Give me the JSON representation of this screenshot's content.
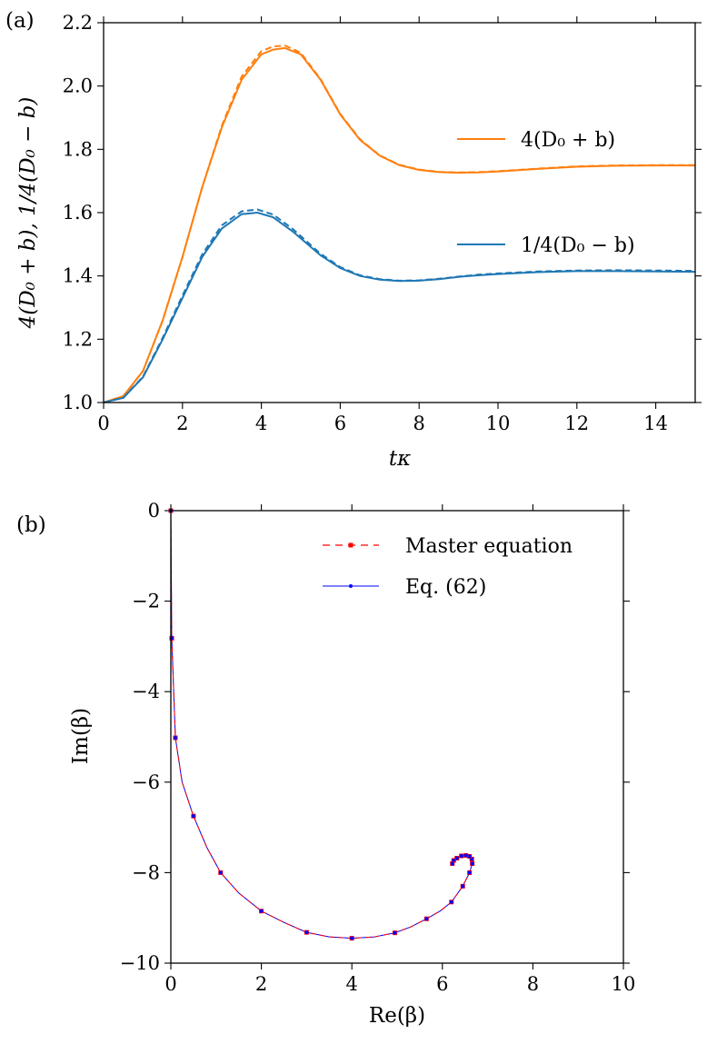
{
  "chart_data": [
    {
      "panel_label": "(a)",
      "type": "line",
      "xlabel": "tκ",
      "ylabel": "4(D₀ + b),  1/4(D₀ − b)",
      "xlim": [
        0,
        15
      ],
      "ylim": [
        1.0,
        2.2
      ],
      "xticks": [
        0,
        2,
        4,
        6,
        8,
        10,
        12,
        14
      ],
      "xtick_labels": [
        "0",
        "2",
        "4",
        "6",
        "8",
        "10",
        "12",
        "14"
      ],
      "yticks": [
        1.0,
        1.2,
        1.4,
        1.6,
        1.8,
        2.0,
        2.2
      ],
      "ytick_labels": [
        "1.0",
        "1.2",
        "1.4",
        "1.6",
        "1.8",
        "2.0",
        "2.2"
      ],
      "legend_position": "right",
      "series": [
        {
          "name": "4(D₀ + b)",
          "color": "#ff7f0e",
          "style": "solid",
          "x": [
            0,
            0.5,
            1,
            1.5,
            2,
            2.5,
            3,
            3.5,
            4,
            4.3,
            4.6,
            5,
            5.5,
            6,
            6.5,
            7,
            7.5,
            8,
            8.5,
            9,
            9.5,
            10,
            11,
            12,
            13,
            14,
            15
          ],
          "y": [
            1.0,
            1.02,
            1.1,
            1.26,
            1.46,
            1.68,
            1.87,
            2.02,
            2.1,
            2.115,
            2.12,
            2.1,
            2.02,
            1.91,
            1.83,
            1.78,
            1.75,
            1.735,
            1.728,
            1.726,
            1.727,
            1.73,
            1.738,
            1.745,
            1.748,
            1.749,
            1.749
          ]
        },
        {
          "name": "4(D₀ + b) dashed",
          "color": "#ff7f0e",
          "style": "dashed",
          "x": [
            0,
            0.5,
            1,
            1.5,
            2,
            2.5,
            3,
            3.5,
            4,
            4.3,
            4.6,
            5,
            5.5,
            6,
            6.5,
            7,
            7.5,
            8,
            8.5,
            9,
            9.5,
            10,
            11,
            12,
            13,
            14,
            15
          ],
          "y": [
            1.0,
            1.02,
            1.1,
            1.26,
            1.46,
            1.68,
            1.875,
            2.03,
            2.11,
            2.125,
            2.128,
            2.105,
            2.022,
            1.912,
            1.832,
            1.781,
            1.751,
            1.736,
            1.729,
            1.727,
            1.728,
            1.731,
            1.739,
            1.746,
            1.749,
            1.75,
            1.75
          ]
        },
        {
          "name": "1/4(D₀ − b)",
          "color": "#1f77b4",
          "style": "solid",
          "x": [
            0,
            0.5,
            1,
            1.5,
            2,
            2.5,
            3,
            3.5,
            3.9,
            4.3,
            4.8,
            5.5,
            6,
            6.5,
            7,
            7.5,
            8,
            8.5,
            9,
            9.5,
            10,
            11,
            12,
            13,
            14,
            15
          ],
          "y": [
            1.0,
            1.015,
            1.08,
            1.2,
            1.33,
            1.46,
            1.55,
            1.595,
            1.6,
            1.585,
            1.54,
            1.465,
            1.425,
            1.4,
            1.388,
            1.384,
            1.385,
            1.39,
            1.397,
            1.402,
            1.406,
            1.412,
            1.415,
            1.415,
            1.414,
            1.413
          ]
        },
        {
          "name": "1/4(D₀ − b) dashed",
          "color": "#1f77b4",
          "style": "dashed",
          "x": [
            0,
            0.5,
            1,
            1.5,
            2,
            2.5,
            3,
            3.5,
            3.9,
            4.3,
            4.8,
            5.5,
            6,
            6.5,
            7,
            7.5,
            8,
            8.5,
            9,
            9.5,
            10,
            11,
            12,
            13,
            14,
            15
          ],
          "y": [
            1.0,
            1.015,
            1.082,
            1.205,
            1.338,
            1.468,
            1.56,
            1.604,
            1.61,
            1.594,
            1.548,
            1.47,
            1.428,
            1.402,
            1.39,
            1.385,
            1.386,
            1.391,
            1.398,
            1.404,
            1.408,
            1.414,
            1.417,
            1.418,
            1.417,
            1.416
          ]
        }
      ],
      "legend": [
        {
          "label": "4(D₀ + b)",
          "color": "#ff7f0e"
        },
        {
          "label": "1/4(D₀ − b)",
          "color": "#1f77b4"
        }
      ]
    },
    {
      "panel_label": "(b)",
      "type": "line",
      "xlabel": "Re(β)",
      "ylabel": "Im(β)",
      "xlim": [
        0,
        10
      ],
      "ylim": [
        -10,
        0
      ],
      "xticks": [
        0,
        2,
        4,
        6,
        8,
        10
      ],
      "xtick_labels": [
        "0",
        "2",
        "4",
        "6",
        "8",
        "10"
      ],
      "yticks": [
        0,
        -2,
        -4,
        -6,
        -8,
        -10
      ],
      "ytick_labels": [
        "0",
        "−2",
        "−4",
        "−6",
        "−8",
        "−10"
      ],
      "legend_position": "top-right",
      "curve": {
        "x": [
          0,
          0.02,
          0.1,
          0.25,
          0.5,
          0.8,
          1.1,
          1.5,
          2.0,
          2.5,
          3.0,
          3.5,
          4.0,
          4.5,
          4.95,
          5.3,
          5.65,
          5.95,
          6.2,
          6.45,
          6.6,
          6.66,
          6.65,
          6.6,
          6.52,
          6.42,
          6.32,
          6.25,
          6.22
        ],
        "y": [
          0,
          -2.82,
          -5.02,
          -6.0,
          -6.75,
          -7.45,
          -8.0,
          -8.45,
          -8.85,
          -9.1,
          -9.32,
          -9.42,
          -9.45,
          -9.42,
          -9.33,
          -9.2,
          -9.02,
          -8.85,
          -8.65,
          -8.3,
          -8.0,
          -7.8,
          -7.7,
          -7.64,
          -7.62,
          -7.63,
          -7.68,
          -7.73,
          -7.8
        ]
      },
      "markers": {
        "x": [
          0,
          0.02,
          0.1,
          0.5,
          1.1,
          2.0,
          3.0,
          4.0,
          4.95,
          5.65,
          6.2,
          6.45,
          6.6,
          6.66,
          6.65,
          6.6,
          6.52,
          6.42,
          6.32,
          6.25,
          6.22
        ],
        "y": [
          0,
          -2.82,
          -5.02,
          -6.75,
          -8.0,
          -8.85,
          -9.32,
          -9.45,
          -9.33,
          -9.02,
          -8.65,
          -8.3,
          -8.0,
          -7.8,
          -7.7,
          -7.64,
          -7.62,
          -7.63,
          -7.68,
          -7.73,
          -7.8
        ]
      },
      "series": [
        {
          "name": "Master equation",
          "color": "#ff0000",
          "style": "dashed",
          "marker": "square"
        },
        {
          "name": "Eq. (62)",
          "color": "#0000ff",
          "style": "solid",
          "marker": "circle"
        }
      ],
      "legend": [
        {
          "label": "Master equation",
          "color": "#ff0000"
        },
        {
          "label": "Eq. (62)",
          "color": "#0000ff"
        }
      ]
    }
  ]
}
